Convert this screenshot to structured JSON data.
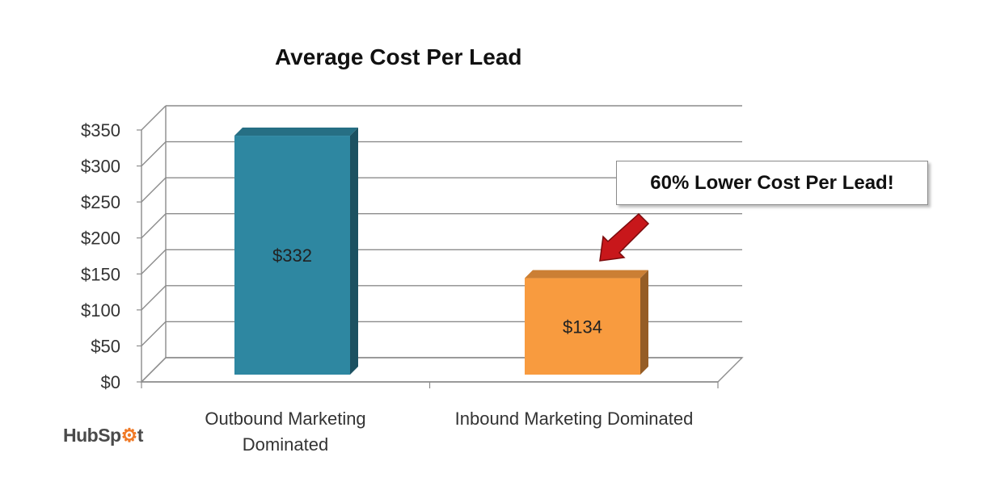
{
  "chart_data": {
    "type": "bar",
    "title": "Average Cost Per Lead",
    "categories": [
      "Outbound Marketing Dominated",
      "Inbound Marketing Dominated"
    ],
    "values": [
      332,
      134
    ],
    "value_labels": [
      "$332",
      "$134"
    ],
    "colors": [
      "#2e87a1",
      "#f89b3f"
    ],
    "ylim": [
      0,
      350
    ],
    "yticks": [
      0,
      50,
      100,
      150,
      200,
      250,
      300,
      350
    ],
    "ytick_labels": [
      "$0",
      "$50",
      "$100",
      "$150",
      "$200",
      "$250",
      "$300",
      "$350"
    ],
    "grid": true,
    "style": "3d",
    "annotation": "60% Lower Cost Per Lead!"
  },
  "category_lines": {
    "outbound": [
      "Outbound Marketing",
      "Dominated"
    ],
    "inbound": [
      "Inbound Marketing Dominated"
    ]
  },
  "logo": {
    "text": "HubSpot",
    "colors": {
      "text": "#4a4a4a",
      "sprocket": "#f07a27"
    }
  }
}
